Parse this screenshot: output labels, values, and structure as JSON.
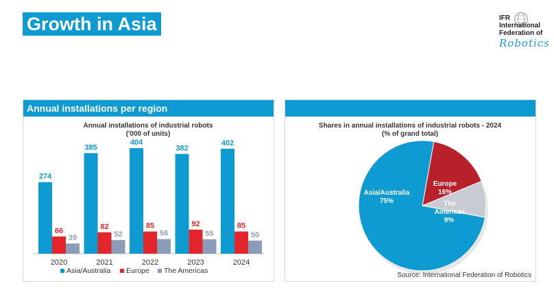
{
  "page_title": "Growth in Asia",
  "logo": {
    "line1": "IFR",
    "line2": "International",
    "line3": "Federation of",
    "line4": "Robotics"
  },
  "left_panel": {
    "header": "Annual installations per region"
  },
  "right_panel": {
    "header": ""
  },
  "source_note": "Source: International Federation of Robotics",
  "colors": {
    "accent": "#0e9bd2",
    "asia": "#0e9bd2",
    "europe": "#e3262c",
    "americas": "#8c9dba"
  },
  "chart_data": [
    {
      "type": "bar",
      "title": "Annual installations of industrial robots",
      "subtitle": "('000 of units)",
      "categories": [
        "2020",
        "2021",
        "2022",
        "2023",
        "2024"
      ],
      "series": [
        {
          "name": "Asia/Australia",
          "values": [
            274,
            385,
            404,
            382,
            402
          ],
          "color": "#0e9bd2"
        },
        {
          "name": "Europe",
          "values": [
            66,
            82,
            85,
            92,
            85
          ],
          "color": "#e3262c"
        },
        {
          "name": "The Americas",
          "values": [
            39,
            52,
            56,
            55,
            50
          ],
          "color": "#8c9dba"
        }
      ],
      "ylim": [
        0,
        420
      ],
      "grid": false,
      "legend": "bottom"
    },
    {
      "type": "pie",
      "title": "Shares in annual installations of industrial robots - 2024",
      "subtitle": "(% of grand total)",
      "slices": [
        {
          "label": "Asia/Australia",
          "value": 75,
          "value_label": "75%",
          "color": "#0e9bd2"
        },
        {
          "label": "Europe",
          "value": 16,
          "value_label": "16%",
          "color": "#b8202a"
        },
        {
          "label": "The Americas",
          "value": 9,
          "value_label": "9%",
          "color": "#c8ccd2"
        }
      ],
      "legend": "none"
    }
  ]
}
